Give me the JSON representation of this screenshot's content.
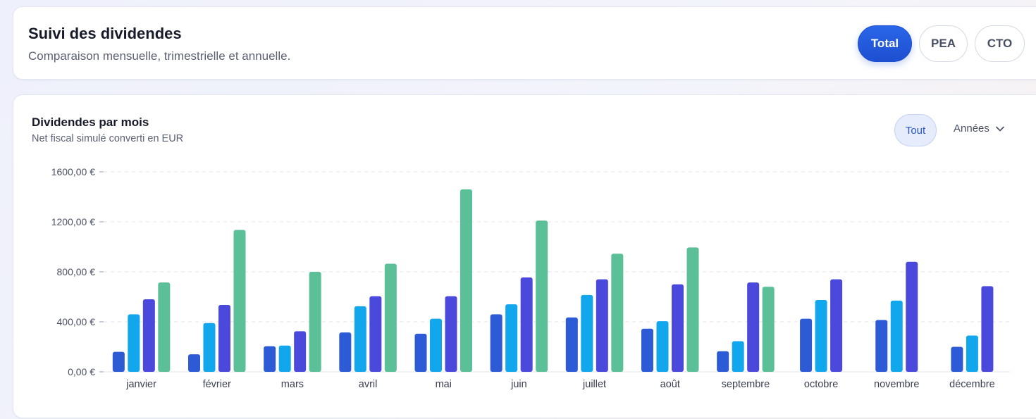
{
  "header": {
    "title": "Suivi des dividendes",
    "subtitle": "Comparaison mensuelle, trimestrielle et annuelle.",
    "tabs": [
      {
        "label": "Total",
        "active": true
      },
      {
        "label": "PEA",
        "active": false
      },
      {
        "label": "CTO",
        "active": false
      }
    ]
  },
  "chart_panel": {
    "filter_label": "Tout",
    "years_label": "Années",
    "years_icon": "chevron-down-icon"
  },
  "colors": {
    "accent": "#1d4fd0",
    "series": [
      "#2d5bd6",
      "#12a6ec",
      "#4b49dc",
      "#5bbf98"
    ]
  },
  "chart_data": {
    "type": "bar",
    "title": "Dividendes par mois",
    "subtitle": "Net fiscal simulé converti en EUR",
    "categories": [
      "janvier",
      "février",
      "mars",
      "avril",
      "mai",
      "juin",
      "juillet",
      "août",
      "septembre",
      "octobre",
      "novembre",
      "décembre"
    ],
    "y_ticks": [
      "0,00 €",
      "400,00 €",
      "800,00 €",
      "1200,00 €",
      "1600,00 €"
    ],
    "ylim": [
      0,
      1600
    ],
    "grid": true,
    "legend": "none",
    "series": [
      {
        "values": [
          160,
          140,
          205,
          315,
          305,
          460,
          435,
          345,
          165,
          425,
          415,
          200
        ]
      },
      {
        "values": [
          460,
          390,
          210,
          525,
          425,
          540,
          615,
          405,
          245,
          575,
          570,
          290
        ]
      },
      {
        "values": [
          580,
          535,
          325,
          605,
          605,
          755,
          740,
          700,
          715,
          740,
          880,
          685
        ]
      },
      {
        "values": [
          715,
          1135,
          800,
          865,
          1460,
          1210,
          945,
          995,
          680,
          null,
          null,
          null
        ]
      }
    ]
  }
}
